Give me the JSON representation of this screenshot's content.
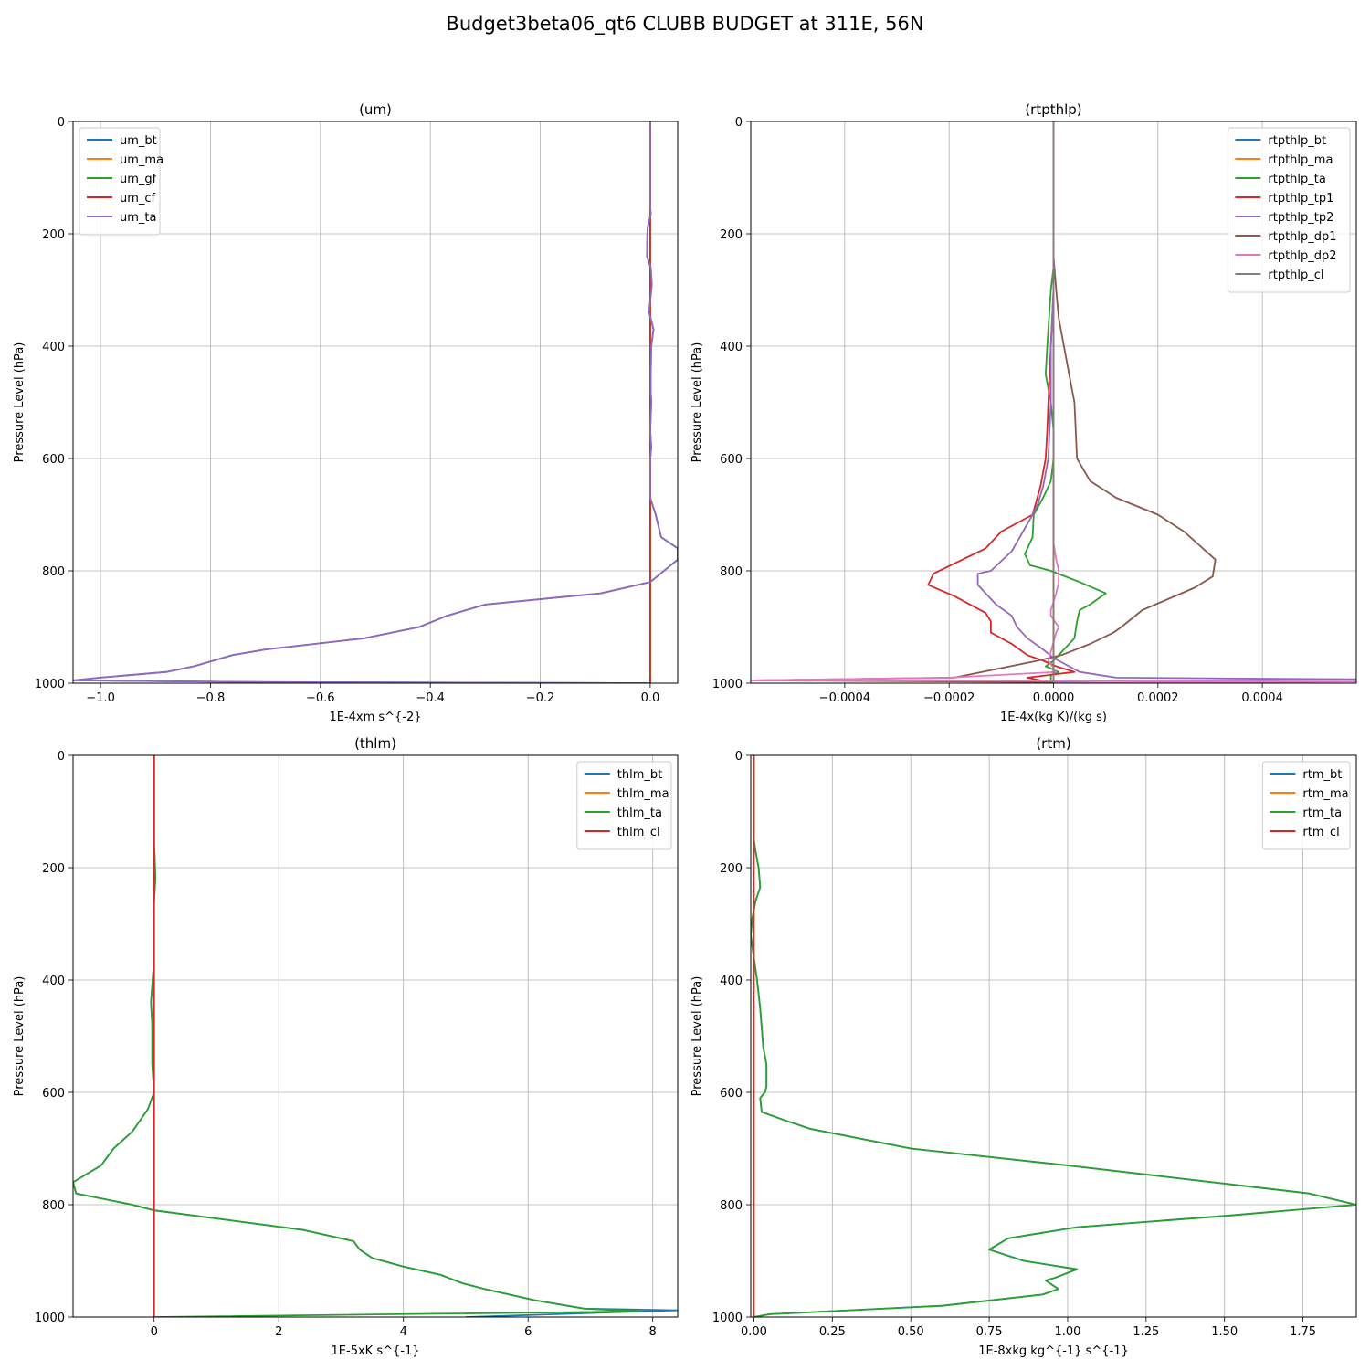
{
  "figure": {
    "title": "Budget3beta06_qt6 CLUBB BUDGET at 311E, 56N"
  },
  "chart_data": [
    {
      "type": "line",
      "title": "(um)",
      "xlabel": "1E-4xm s^{-2}",
      "ylabel": "Pressure Level (hPa)",
      "xlim": [
        -1.05,
        0.05
      ],
      "ylim": [
        1000,
        0
      ],
      "y_inverted": true,
      "xticks": [
        -1.0,
        -0.8,
        -0.6,
        -0.4,
        -0.2,
        0.0
      ],
      "xtick_labels": [
        "−1.0",
        "−0.8",
        "−0.6",
        "−0.4",
        "−0.2",
        "0.0"
      ],
      "yticks": [
        0,
        200,
        400,
        600,
        800,
        1000
      ],
      "ytick_labels": [
        "0",
        "200",
        "400",
        "600",
        "800",
        "1000"
      ],
      "grid": true,
      "legend_position": "upper left",
      "series": [
        {
          "name": "um_bt",
          "color": "#1f77b4",
          "x": [
            0,
            0,
            0.001,
            -0.005,
            -0.006,
            0.001,
            0.003,
            -0.002,
            0.006,
            0.002,
            0.001,
            0.001,
            0.002,
            0.0,
            0.002,
            0.0,
            0.0,
            0.01,
            0.02,
            0.05,
            0.05,
            0.0,
            -0.09,
            -0.3,
            -0.37,
            -0.42,
            -0.52,
            -0.7,
            -0.76,
            -0.83,
            -0.88,
            -1.0,
            -1.05,
            -0.7,
            0
          ],
          "y": [
            0,
            150,
            165,
            190,
            240,
            260,
            290,
            340,
            370,
            400,
            450,
            480,
            500,
            550,
            580,
            600,
            670,
            700,
            740,
            760,
            780,
            820,
            840,
            860,
            880,
            900,
            920,
            940,
            950,
            970,
            980,
            990,
            995,
            998,
            1000
          ]
        },
        {
          "name": "um_ma",
          "color": "#ff7f0e",
          "x": [
            0,
            0
          ],
          "y": [
            0,
            1000
          ]
        },
        {
          "name": "um_gf",
          "color": "#2ca02c",
          "x": [
            0,
            0
          ],
          "y": [
            0,
            1000
          ]
        },
        {
          "name": "um_cf",
          "color": "#d62728",
          "x": [
            0,
            0
          ],
          "y": [
            0,
            1000
          ]
        },
        {
          "name": "um_ta",
          "color": "#9467bd",
          "x": [
            0,
            0,
            0.001,
            -0.005,
            -0.006,
            0.001,
            0.003,
            -0.002,
            0.006,
            0.002,
            0.001,
            0.001,
            0.002,
            0.0,
            0.002,
            0.0,
            0.0,
            0.01,
            0.02,
            0.05,
            0.05,
            0.0,
            -0.09,
            -0.3,
            -0.37,
            -0.42,
            -0.52,
            -0.7,
            -0.76,
            -0.83,
            -0.88,
            -1.0,
            -1.05,
            -0.7,
            0
          ],
          "y": [
            0,
            150,
            165,
            190,
            240,
            260,
            290,
            340,
            370,
            400,
            450,
            480,
            500,
            550,
            580,
            600,
            670,
            700,
            740,
            760,
            780,
            820,
            840,
            860,
            880,
            900,
            920,
            940,
            950,
            970,
            980,
            990,
            995,
            998,
            1000
          ]
        }
      ]
    },
    {
      "type": "line",
      "title": "(rtpthlp)",
      "xlabel": "1E-4x(kg K)/(kg s)",
      "ylabel": "Pressure Level (hPa)",
      "xlim": [
        -0.00058,
        0.00058
      ],
      "ylim": [
        1000,
        0
      ],
      "y_inverted": true,
      "xticks": [
        -0.0004,
        -0.0002,
        0.0,
        0.0002,
        0.0004
      ],
      "xtick_labels": [
        "−0.0004",
        "−0.0002",
        "0.0000",
        "0.0002",
        "0.0004"
      ],
      "yticks": [
        0,
        200,
        400,
        600,
        800,
        1000
      ],
      "ytick_labels": [
        "0",
        "200",
        "400",
        "600",
        "800",
        "1000"
      ],
      "grid": true,
      "legend_position": "upper right",
      "series": [
        {
          "name": "rtpthlp_bt",
          "color": "#1f77b4",
          "x": [
            0,
            0
          ],
          "y": [
            0,
            1000
          ]
        },
        {
          "name": "rtpthlp_ma",
          "color": "#ff7f0e",
          "x": [
            0,
            0
          ],
          "y": [
            0,
            1000
          ]
        },
        {
          "name": "rtpthlp_ta",
          "color": "#2ca02c",
          "x": [
            0,
            0,
            -5e-06,
            -1.2e-05,
            -1.5e-05,
            -5e-06,
            0,
            0,
            -5e-06,
            -2e-05,
            -3.8e-05,
            -4e-05,
            -5.5e-05,
            -4.5e-05,
            -5e-06,
            5e-05,
            0.0001,
            7e-05,
            5e-05,
            4.5e-05,
            4e-05,
            2e-05,
            0.0,
            -1.5e-05,
            1e-05,
            -5e-06,
            -5e-06,
            0
          ],
          "y": [
            0,
            260,
            300,
            400,
            450,
            500,
            550,
            600,
            640,
            670,
            700,
            740,
            770,
            790,
            800,
            820,
            840,
            860,
            870,
            890,
            920,
            940,
            960,
            970,
            980,
            985,
            995,
            1000
          ]
        },
        {
          "name": "rtpthlp_tp1",
          "color": "#d62728",
          "x": [
            0,
            0,
            -5e-06,
            -1e-05,
            -1.2e-05,
            -1.5e-05,
            -2.5e-05,
            -4e-05,
            -0.0001,
            -0.00013,
            -0.00023,
            -0.00024,
            -0.00019,
            -0.00013,
            -0.00012,
            -0.00012,
            -8e-05,
            -5e-05,
            -2e-05,
            5e-06,
            4e-05,
            -5e-05,
            0
          ],
          "y": [
            0,
            300,
            400,
            500,
            550,
            600,
            650,
            700,
            730,
            760,
            805,
            825,
            845,
            875,
            890,
            910,
            930,
            950,
            960,
            970,
            980,
            990,
            1000
          ]
        },
        {
          "name": "rtpthlp_tp2",
          "color": "#9467bd",
          "x": [
            0,
            0,
            -5e-06,
            -5e-06,
            -1e-05,
            -2e-05,
            -3e-05,
            -4e-05,
            -8e-05,
            -0.00012,
            -0.000145,
            -0.000145,
            -0.00011,
            -8e-05,
            -7e-05,
            -5e-05,
            -2e-05,
            0.0,
            2e-05,
            5e-05,
            0.00012,
            0.00058,
            0.0,
            0
          ],
          "y": [
            0,
            300,
            400,
            500,
            600,
            650,
            680,
            700,
            765,
            800,
            805,
            825,
            860,
            880,
            900,
            920,
            940,
            955,
            965,
            980,
            990,
            993,
            997,
            1000
          ]
        },
        {
          "name": "rtpthlp_dp1",
          "color": "#8c564b",
          "x": [
            0,
            0,
            5e-06,
            1e-05,
            2e-05,
            3e-05,
            4e-05,
            4.5e-05,
            7e-05,
            0.00012,
            0.0002,
            0.00025,
            0.00031,
            0.000305,
            0.00027,
            0.00017,
            0.00013,
            0.000115,
            7e-05,
            1.5e-05,
            -3e-05,
            -0.00011,
            -0.00019,
            -0.00058,
            0.0,
            0
          ],
          "y": [
            0,
            240,
            300,
            350,
            400,
            450,
            500,
            600,
            640,
            670,
            700,
            730,
            780,
            810,
            830,
            870,
            900,
            910,
            930,
            950,
            960,
            975,
            990,
            995,
            998,
            1000
          ]
        },
        {
          "name": "rtpthlp_dp2",
          "color": "#e377c2",
          "x": [
            0,
            0,
            5e-06,
            1e-05,
            1e-05,
            5e-06,
            -5e-06,
            -5e-06,
            1e-05,
            5e-06,
            -1e-05,
            5e-06,
            -0.0002,
            -0.00058,
            0.00058,
            0
          ],
          "y": [
            0,
            750,
            780,
            800,
            820,
            840,
            870,
            880,
            900,
            910,
            960,
            980,
            990,
            995,
            997,
            1000
          ]
        },
        {
          "name": "rtpthlp_cl",
          "color": "#7f7f7f",
          "x": [
            0,
            0
          ],
          "y": [
            0,
            1000
          ]
        }
      ]
    },
    {
      "type": "line",
      "title": "(thlm)",
      "xlabel": "1E-5xK s^{-1}",
      "ylabel": "Pressure Level (hPa)",
      "xlim": [
        -1.3,
        8.4
      ],
      "ylim": [
        1000,
        0
      ],
      "y_inverted": true,
      "xticks": [
        0,
        2,
        4,
        6,
        8
      ],
      "xtick_labels": [
        "0",
        "2",
        "4",
        "6",
        "8"
      ],
      "yticks": [
        0,
        200,
        400,
        600,
        800,
        1000
      ],
      "ytick_labels": [
        "0",
        "200",
        "400",
        "600",
        "800",
        "1000"
      ],
      "grid": true,
      "legend_position": "upper right",
      "series": [
        {
          "name": "thlm_bt",
          "color": "#1f77b4",
          "x": [
            0,
            0,
            0.01,
            0.02,
            0.0,
            -0.01,
            -0.01,
            -0.05,
            -0.03,
            -0.03,
            0.0,
            -0.1,
            -0.35,
            -0.65,
            -0.85,
            -1.3,
            -1.25,
            -0.35,
            0.0,
            2.4,
            3.2,
            3.3,
            3.5,
            4.0,
            4.6,
            4.95,
            5.3,
            5.7,
            6.1,
            6.9,
            8.4,
            5.0
          ],
          "y": [
            0,
            160,
            180,
            220,
            260,
            300,
            380,
            440,
            480,
            550,
            600,
            630,
            670,
            700,
            730,
            760,
            780,
            800,
            810,
            845,
            865,
            880,
            895,
            910,
            925,
            940,
            950,
            960,
            970,
            985,
            988,
            1000
          ]
        },
        {
          "name": "thlm_ma",
          "color": "#ff7f0e",
          "x": [
            0,
            0
          ],
          "y": [
            0,
            1000
          ]
        },
        {
          "name": "thlm_ta",
          "color": "#2ca02c",
          "x": [
            0,
            0,
            0.01,
            0.02,
            0.0,
            -0.01,
            -0.01,
            -0.05,
            -0.03,
            -0.03,
            0.0,
            -0.1,
            -0.35,
            -0.65,
            -0.85,
            -1.3,
            -1.25,
            -0.35,
            0.0,
            2.4,
            3.2,
            3.3,
            3.5,
            4.0,
            4.6,
            4.95,
            5.3,
            5.7,
            6.1,
            6.9,
            7.8,
            0
          ],
          "y": [
            0,
            160,
            180,
            220,
            260,
            300,
            380,
            440,
            480,
            550,
            600,
            630,
            670,
            700,
            730,
            760,
            780,
            800,
            810,
            845,
            865,
            880,
            895,
            910,
            925,
            940,
            950,
            960,
            970,
            985,
            990,
            1000
          ]
        },
        {
          "name": "thlm_cl",
          "color": "#d62728",
          "x": [
            0,
            0
          ],
          "y": [
            0,
            1000
          ]
        }
      ]
    },
    {
      "type": "line",
      "title": "(rtm)",
      "xlabel": "1E-8xkg kg^{-1} s^{-1}",
      "ylabel": "Pressure Level (hPa)",
      "xlim": [
        -0.01,
        1.92
      ],
      "ylim": [
        1000,
        0
      ],
      "y_inverted": true,
      "xticks": [
        0.0,
        0.25,
        0.5,
        0.75,
        1.0,
        1.25,
        1.5,
        1.75
      ],
      "xtick_labels": [
        "0.00",
        "0.25",
        "0.50",
        "0.75",
        "1.00",
        "1.25",
        "1.50",
        "1.75"
      ],
      "yticks": [
        0,
        200,
        400,
        600,
        800,
        1000
      ],
      "ytick_labels": [
        "0",
        "200",
        "400",
        "600",
        "800",
        "1000"
      ],
      "grid": true,
      "legend_position": "upper right",
      "series": [
        {
          "name": "rtm_bt",
          "color": "#1f77b4",
          "x": [
            0,
            0,
            0.005,
            0.015,
            0.02,
            0.005,
            -0.005,
            -0.01,
            0.0,
            0.01,
            0.02,
            0.03,
            0.04,
            0.04,
            0.035,
            0.02,
            0.025,
            0.1,
            0.18,
            0.5,
            1.0,
            1.77,
            1.92,
            1.5,
            1.03,
            0.81,
            0.75,
            0.86,
            1.03,
            0.96,
            0.93,
            0.97,
            0.92,
            0.6,
            0.05,
            0
          ],
          "y": [
            0,
            150,
            170,
            200,
            235,
            260,
            290,
            320,
            360,
            400,
            450,
            520,
            550,
            590,
            600,
            610,
            635,
            650,
            665,
            700,
            730,
            780,
            800,
            820,
            840,
            860,
            880,
            900,
            915,
            930,
            935,
            950,
            960,
            980,
            995,
            1000
          ]
        },
        {
          "name": "rtm_ma",
          "color": "#ff7f0e",
          "x": [
            0,
            0
          ],
          "y": [
            0,
            1000
          ]
        },
        {
          "name": "rtm_ta",
          "color": "#2ca02c",
          "x": [
            0,
            0,
            0.005,
            0.015,
            0.02,
            0.005,
            -0.005,
            -0.01,
            0.0,
            0.01,
            0.02,
            0.03,
            0.04,
            0.04,
            0.035,
            0.02,
            0.025,
            0.1,
            0.18,
            0.5,
            1.0,
            1.77,
            1.92,
            1.5,
            1.03,
            0.81,
            0.75,
            0.86,
            1.03,
            0.96,
            0.93,
            0.97,
            0.92,
            0.6,
            0.05,
            0
          ],
          "y": [
            0,
            150,
            170,
            200,
            235,
            260,
            290,
            320,
            360,
            400,
            450,
            520,
            550,
            590,
            600,
            610,
            635,
            650,
            665,
            700,
            730,
            780,
            800,
            820,
            840,
            860,
            880,
            900,
            915,
            930,
            935,
            950,
            960,
            980,
            995,
            1000
          ]
        },
        {
          "name": "rtm_cl",
          "color": "#d62728",
          "x": [
            0,
            0
          ],
          "y": [
            0,
            1000
          ]
        }
      ]
    }
  ]
}
